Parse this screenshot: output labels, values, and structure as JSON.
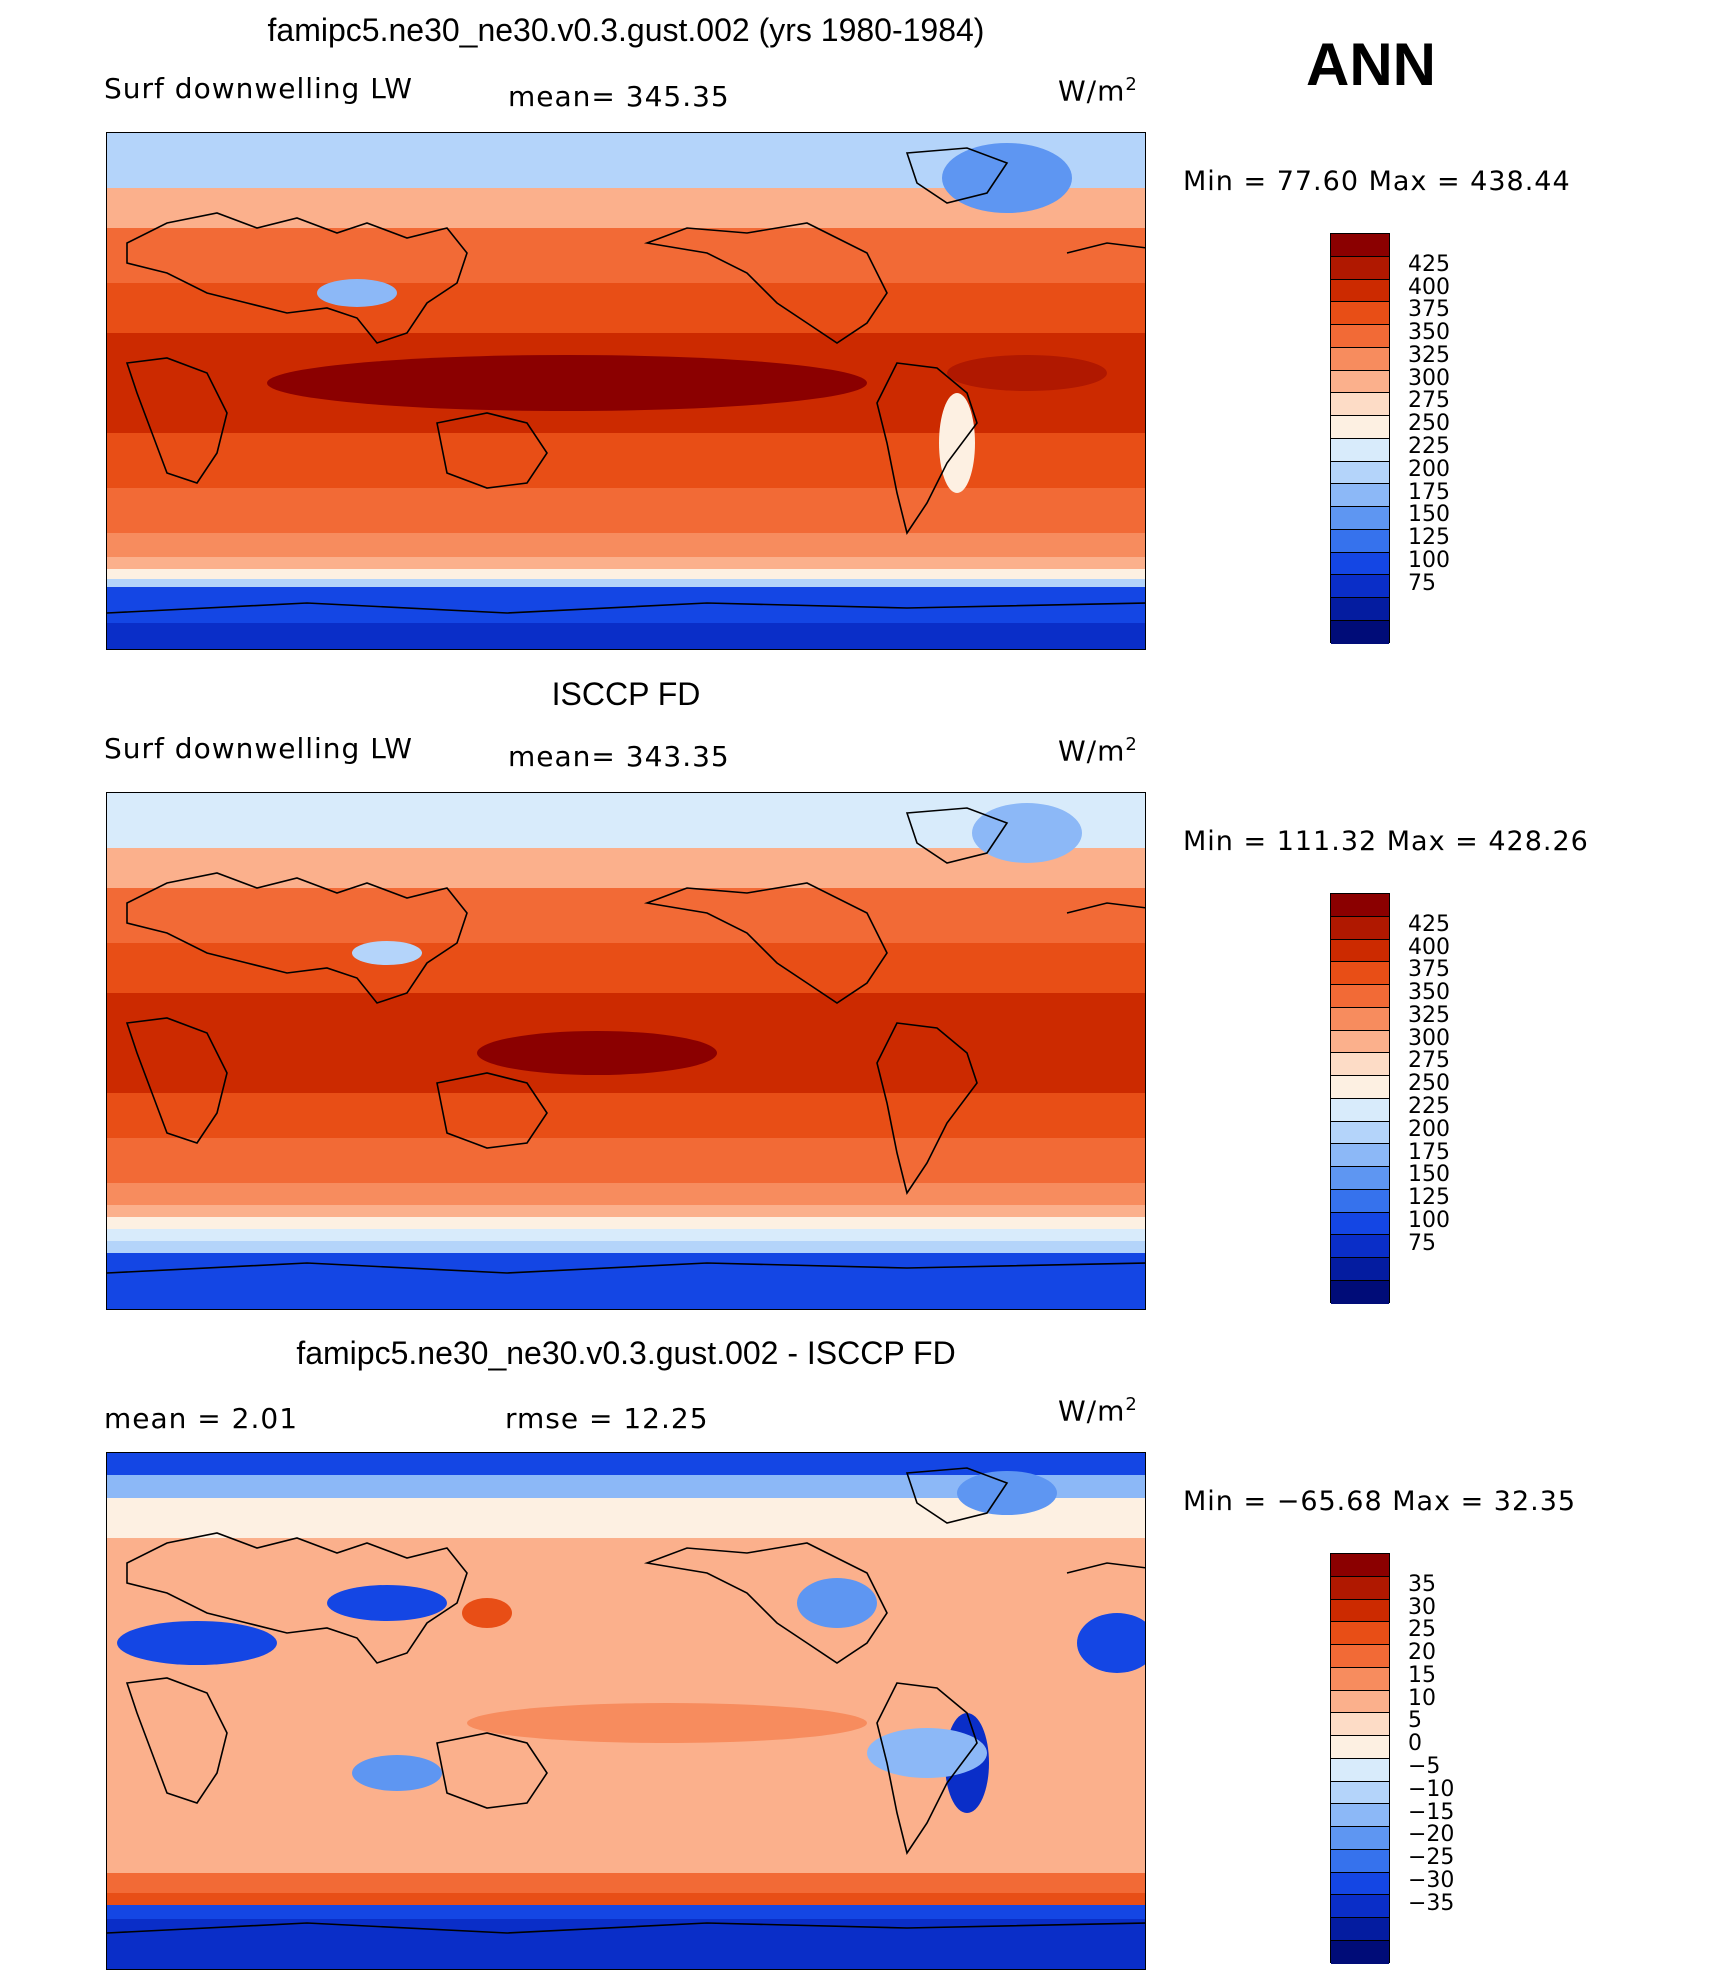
{
  "season": "ANN",
  "units": "W/m",
  "units_sup": "2",
  "panels": [
    {
      "title": "famipc5.ne30_ne30.v0.3.gust.002 (yrs 1980-1984)",
      "left_label": "Surf  downwelling  LW",
      "center_label": "mean=  345.35",
      "minmax": "Min  =    77.60  Max  =  438.44",
      "levels": [
        "425",
        "400",
        "375",
        "350",
        "325",
        "300",
        "275",
        "250",
        "225",
        "200",
        "175",
        "150",
        "125",
        "100",
        "75"
      ]
    },
    {
      "title": "ISCCP FD",
      "left_label": "Surf  downwelling  LW",
      "center_label": "mean=  343.35",
      "minmax": "Min  =  111.32  Max  =  428.26",
      "levels": [
        "425",
        "400",
        "375",
        "350",
        "325",
        "300",
        "275",
        "250",
        "225",
        "200",
        "175",
        "150",
        "125",
        "100",
        "75"
      ]
    },
    {
      "title": "famipc5.ne30_ne30.v0.3.gust.002 - ISCCP FD",
      "left_label": "mean  =      2.01",
      "center_label": "rmse  =     12.25",
      "minmax": "Min  =  −65.68  Max  =     32.35",
      "levels": [
        "35",
        "30",
        "25",
        "20",
        "15",
        "10",
        "5",
        "0",
        "−5",
        "−10",
        "−15",
        "−20",
        "−25",
        "−30",
        "−35"
      ]
    }
  ],
  "colorbar_colors": [
    "#8b0000",
    "#b01800",
    "#cc2a00",
    "#e84e16",
    "#f26a36",
    "#f78c5e",
    "#fbb08c",
    "#fddcc6",
    "#fdf0e2",
    "#d8ebfb",
    "#b4d4fa",
    "#8cb8f7",
    "#5e96f2",
    "#3672ed",
    "#1446e4",
    "#0a2ec8",
    "#041ca0",
    "#000c78"
  ]
}
